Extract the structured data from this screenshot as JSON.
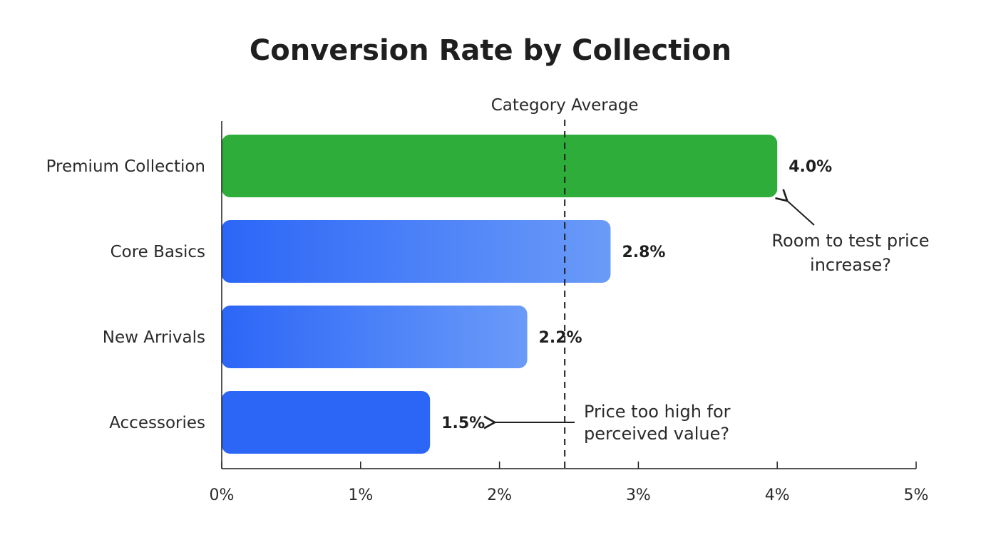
{
  "chart_data": {
    "type": "bar",
    "orientation": "horizontal",
    "title": "Conversion Rate by Collection",
    "categories": [
      "Premium Collection",
      "Core Basics",
      "New Arrivals",
      "Accessories"
    ],
    "values": [
      4.0,
      2.8,
      2.2,
      1.5
    ],
    "value_labels": [
      "4.0%",
      "2.8%",
      "2.2%",
      "1.5%"
    ],
    "xlim": [
      0,
      5
    ],
    "x_ticks": [
      0,
      1,
      2,
      3,
      4,
      5
    ],
    "x_tick_labels": [
      "0%",
      "1%",
      "2%",
      "3%",
      "4%",
      "5%"
    ],
    "xlabel": "",
    "ylabel": "",
    "grid": false,
    "bar_colors": [
      "#2fad3a",
      "#3b72f5",
      "#3b72f5",
      "#2c66f7"
    ],
    "reference_line": {
      "value": 2.47,
      "label": "Category Average",
      "style": "dashed"
    },
    "annotations": [
      {
        "lines": [
          "Room to test price",
          "increase?"
        ],
        "target": "Premium Collection"
      },
      {
        "lines": [
          "Price too high for",
          "perceived value?"
        ],
        "target": "Accessories"
      }
    ]
  }
}
